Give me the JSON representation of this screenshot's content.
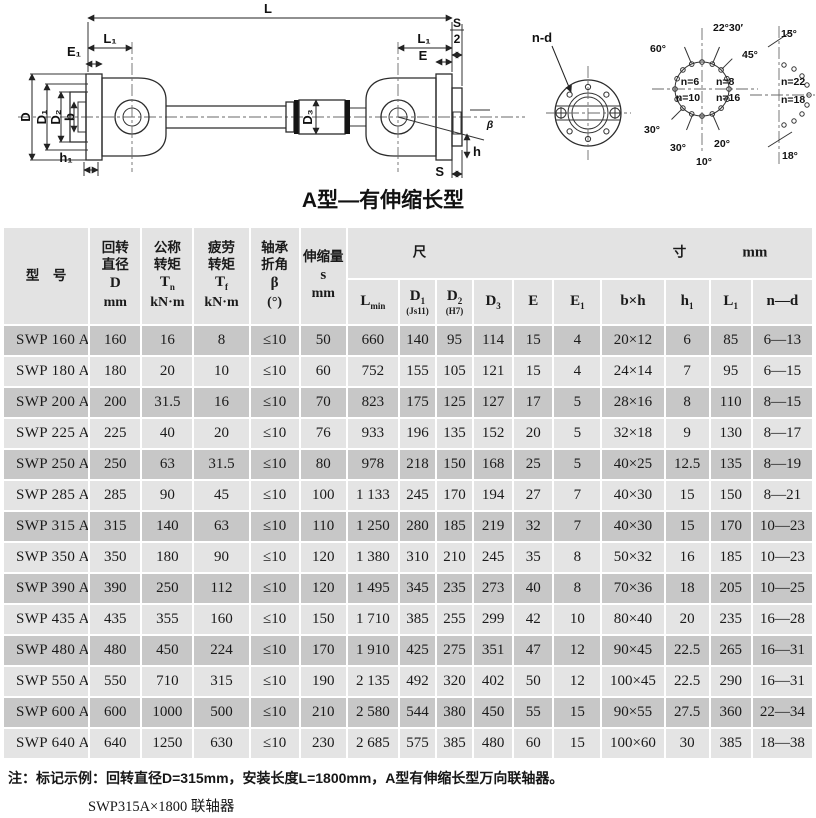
{
  "colors": {
    "row_dark": "#c7c7c7",
    "row_light": "#e4e4e4",
    "header_bg": "#e3e3e3"
  },
  "drawing": {
    "title": "A型—有伸缩长型",
    "dims": {
      "L": "L",
      "L1_left": "L₁",
      "L1_right": "L₁",
      "E1": "E₁",
      "E": "E",
      "S_num": "S",
      "S_den": "2",
      "D": "D",
      "D1": "D₁",
      "D2": "D₂",
      "b": "b",
      "h1": "h₁",
      "D3": "D₃",
      "beta": "β",
      "h": "h",
      "S": "S",
      "nd": "n-d"
    },
    "bolt_circle_main": {
      "a60": "60°",
      "a2230": "22°30′",
      "a45": "45°",
      "n6": "n=6",
      "n8": "n=8",
      "n10": "n=10",
      "n16": "n=16",
      "a30a": "30°",
      "a30b": "30°",
      "a20": "20°",
      "a10": "10°"
    },
    "bolt_circle_half": {
      "a15": "15°",
      "n22": "n=22",
      "n18": "n=18",
      "a18": "18°"
    }
  },
  "table": {
    "headers": {
      "model": "型　号",
      "d": {
        "l1": "回转",
        "l2": "直径",
        "sym": "D",
        "unit": "mm"
      },
      "tn": {
        "l1": "公称",
        "l2": "转矩",
        "sym": "T",
        "sub": "n",
        "unit": "kN·m"
      },
      "tf": {
        "l1": "疲劳",
        "l2": "转矩",
        "sym": "T",
        "sub": "f",
        "unit": "kN·m"
      },
      "beta": {
        "l1": "轴承",
        "l2": "折角",
        "sym": "β",
        "unit": "(°)"
      },
      "s": {
        "l1": "伸缩量",
        "sym": "s",
        "unit": "mm"
      },
      "dims_group": {
        "c1": "尺",
        "c2": "寸",
        "unit": "mm"
      },
      "dim_cols": [
        {
          "main": "L",
          "sub": "min",
          "note": ""
        },
        {
          "main": "D",
          "sub": "1",
          "note": "(Js11)"
        },
        {
          "main": "D",
          "sub": "2",
          "note": "(H7)"
        },
        {
          "main": "D",
          "sub": "3",
          "note": ""
        },
        {
          "main": "E",
          "sub": "",
          "note": ""
        },
        {
          "main": "E",
          "sub": "1",
          "note": ""
        },
        {
          "main": "b×h",
          "sub": "",
          "note": ""
        },
        {
          "main": "h",
          "sub": "1",
          "note": ""
        },
        {
          "main": "L",
          "sub": "1",
          "note": ""
        },
        {
          "main": "n—d",
          "sub": "",
          "note": ""
        }
      ]
    },
    "rows": [
      [
        "SWP 160 A",
        "160",
        "16",
        "8",
        "≤10",
        "50",
        "660",
        "140",
        "95",
        "114",
        "15",
        "4",
        "20×12",
        "6",
        "85",
        "6—13"
      ],
      [
        "SWP 180 A",
        "180",
        "20",
        "10",
        "≤10",
        "60",
        "752",
        "155",
        "105",
        "121",
        "15",
        "4",
        "24×14",
        "7",
        "95",
        "6—15"
      ],
      [
        "SWP 200 A",
        "200",
        "31.5",
        "16",
        "≤10",
        "70",
        "823",
        "175",
        "125",
        "127",
        "17",
        "5",
        "28×16",
        "8",
        "110",
        "8—15"
      ],
      [
        "SWP 225 A",
        "225",
        "40",
        "20",
        "≤10",
        "76",
        "933",
        "196",
        "135",
        "152",
        "20",
        "5",
        "32×18",
        "9",
        "130",
        "8—17"
      ],
      [
        "SWP 250 A",
        "250",
        "63",
        "31.5",
        "≤10",
        "80",
        "978",
        "218",
        "150",
        "168",
        "25",
        "5",
        "40×25",
        "12.5",
        "135",
        "8—19"
      ],
      [
        "SWP 285 A",
        "285",
        "90",
        "45",
        "≤10",
        "100",
        "1 133",
        "245",
        "170",
        "194",
        "27",
        "7",
        "40×30",
        "15",
        "150",
        "8—21"
      ],
      [
        "SWP 315 A",
        "315",
        "140",
        "63",
        "≤10",
        "110",
        "1 250",
        "280",
        "185",
        "219",
        "32",
        "7",
        "40×30",
        "15",
        "170",
        "10—23"
      ],
      [
        "SWP 350 A",
        "350",
        "180",
        "90",
        "≤10",
        "120",
        "1 380",
        "310",
        "210",
        "245",
        "35",
        "8",
        "50×32",
        "16",
        "185",
        "10—23"
      ],
      [
        "SWP 390 A",
        "390",
        "250",
        "112",
        "≤10",
        "120",
        "1 495",
        "345",
        "235",
        "273",
        "40",
        "8",
        "70×36",
        "18",
        "205",
        "10—25"
      ],
      [
        "SWP 435 A",
        "435",
        "355",
        "160",
        "≤10",
        "150",
        "1 710",
        "385",
        "255",
        "299",
        "42",
        "10",
        "80×40",
        "20",
        "235",
        "16—28"
      ],
      [
        "SWP 480 A",
        "480",
        "450",
        "224",
        "≤10",
        "170",
        "1 910",
        "425",
        "275",
        "351",
        "47",
        "12",
        "90×45",
        "22.5",
        "265",
        "16—31"
      ],
      [
        "SWP 550 A",
        "550",
        "710",
        "315",
        "≤10",
        "190",
        "2 135",
        "492",
        "320",
        "402",
        "50",
        "12",
        "100×45",
        "22.5",
        "290",
        "16—31"
      ],
      [
        "SWP 600 A",
        "600",
        "1000",
        "500",
        "≤10",
        "210",
        "2 580",
        "544",
        "380",
        "450",
        "55",
        "15",
        "90×55",
        "27.5",
        "360",
        "22—34"
      ],
      [
        "SWP 640 A",
        "640",
        "1250",
        "630",
        "≤10",
        "230",
        "2 685",
        "575",
        "385",
        "480",
        "60",
        "15",
        "100×60",
        "30",
        "385",
        "18—38"
      ]
    ]
  },
  "footnote": {
    "line1": "注：标记示例：回转直径D=315mm，安装长度L=1800mm，A型有伸缩长型万向联轴器。",
    "line2": "SWP315A×1800 联轴器"
  }
}
